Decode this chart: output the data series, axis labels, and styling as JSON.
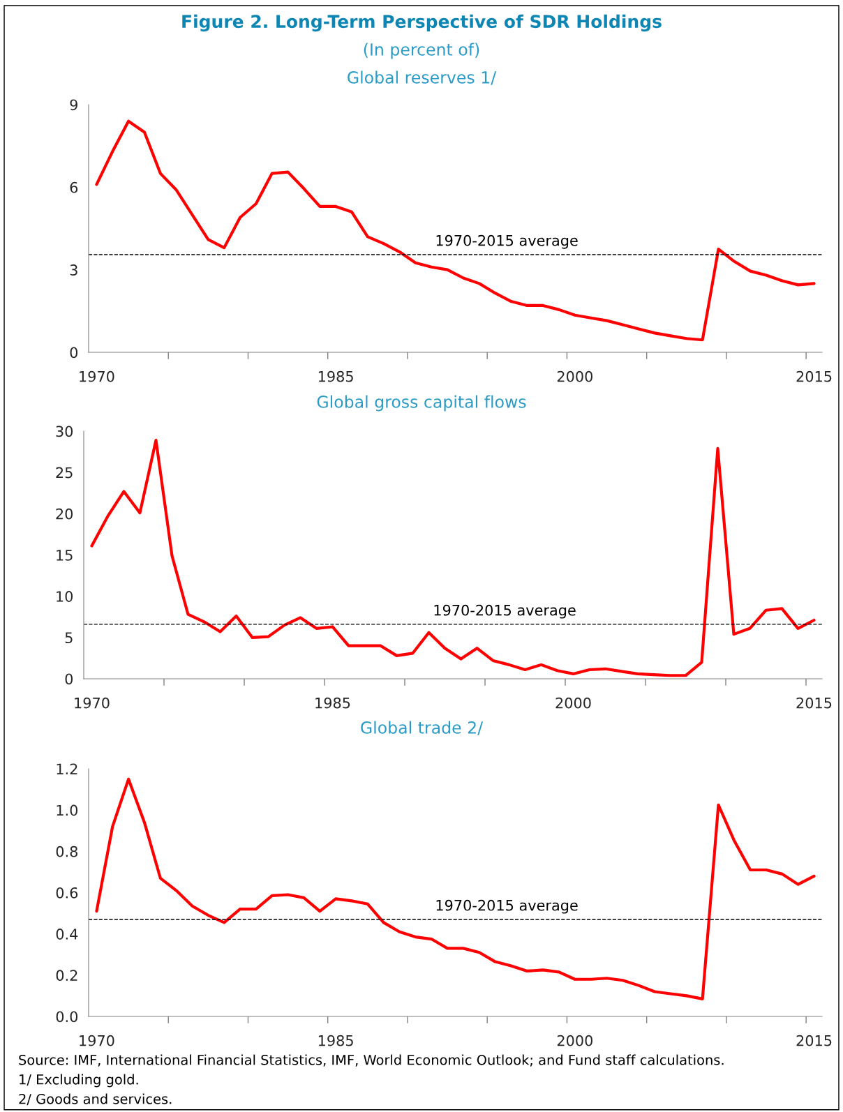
{
  "chart_data": [
    {
      "type": "line",
      "title": "Figure 2. Long-Term Perspective of SDR Holdings",
      "subtitle": "(In percent of)",
      "xlabel": "Global reserves 1/",
      "x": [
        1970,
        1971,
        1972,
        1973,
        1974,
        1975,
        1976,
        1977,
        1978,
        1979,
        1980,
        1981,
        1982,
        1983,
        1984,
        1985,
        1986,
        1987,
        1988,
        1989,
        1990,
        1991,
        1992,
        1993,
        1994,
        1995,
        1996,
        1997,
        1998,
        1999,
        2000,
        2001,
        2002,
        2003,
        2004,
        2005,
        2006,
        2007,
        2008,
        2009,
        2010,
        2011,
        2012,
        2013,
        2014,
        2015
      ],
      "series": [
        {
          "color": "#ff0000",
          "values": [
            6.1,
            7.3,
            8.4,
            8.0,
            6.5,
            5.9,
            5.0,
            4.1,
            3.8,
            4.9,
            5.4,
            6.5,
            6.55,
            5.95,
            5.3,
            5.3,
            5.1,
            4.2,
            3.95,
            3.65,
            3.25,
            3.1,
            3.0,
            2.7,
            2.5,
            2.15,
            1.85,
            1.7,
            1.7,
            1.55,
            1.35,
            1.25,
            1.15,
            1.0,
            0.85,
            0.7,
            0.6,
            0.5,
            0.45,
            3.75,
            3.3,
            2.95,
            2.8,
            2.6,
            2.45,
            2.5
          ]
        }
      ],
      "xlim": [
        1969.5,
        2015.5
      ],
      "xticks": [
        {
          "value": 1970,
          "label": "1970"
        },
        {
          "value": 1974.5,
          "label": null
        },
        {
          "value": 1979.5,
          "label": null
        },
        {
          "value": 1985,
          "label": "1985"
        },
        {
          "value": 1984.5,
          "label": null
        },
        {
          "value": 1989.5,
          "label": null
        },
        {
          "value": 1994.5,
          "label": null
        },
        {
          "value": 2000,
          "label": "2000"
        },
        {
          "value": 1999.5,
          "label": null
        },
        {
          "value": 2004.5,
          "label": null
        },
        {
          "value": 2009.5,
          "label": null
        },
        {
          "value": 2015,
          "label": "2015"
        },
        {
          "value": 2014.5,
          "label": null
        }
      ],
      "ylim": [
        0,
        9
      ],
      "yticks": [
        0,
        3,
        6,
        9
      ],
      "ref_lines": [
        {
          "axis": "y",
          "value": 3.55,
          "label": "1970-2015 average",
          "color": "#000000",
          "line_style": "dashed"
        }
      ],
      "grid": false,
      "legend": false,
      "marker": "none",
      "line_style": "solid"
    },
    {
      "type": "line",
      "xlabel": "Global gross capital flows",
      "x": [
        1970,
        1971,
        1972,
        1973,
        1974,
        1975,
        1976,
        1977,
        1978,
        1979,
        1980,
        1981,
        1982,
        1983,
        1984,
        1985,
        1986,
        1987,
        1988,
        1989,
        1990,
        1991,
        1992,
        1993,
        1994,
        1995,
        1996,
        1997,
        1998,
        1999,
        2000,
        2001,
        2002,
        2003,
        2004,
        2005,
        2006,
        2007,
        2008,
        2009,
        2010,
        2011,
        2012,
        2013,
        2014,
        2015
      ],
      "series": [
        {
          "color": "#ff0000",
          "values": [
            16.1,
            19.7,
            22.7,
            20.1,
            28.9,
            14.9,
            7.8,
            6.9,
            5.7,
            7.6,
            5.0,
            5.1,
            6.5,
            7.4,
            6.1,
            6.3,
            4.0,
            4.0,
            4.0,
            2.8,
            3.1,
            5.6,
            3.7,
            2.4,
            3.7,
            2.2,
            1.7,
            1.1,
            1.7,
            1.0,
            0.6,
            1.1,
            1.2,
            0.9,
            0.6,
            0.5,
            0.4,
            0.4,
            2.0,
            27.9,
            5.4,
            6.1,
            8.3,
            8.5,
            6.1,
            7.1
          ]
        }
      ],
      "xlim": [
        1969.5,
        2015.5
      ],
      "xticks": [
        {
          "value": 1970,
          "label": "1970"
        },
        {
          "value": 1974.5,
          "label": null
        },
        {
          "value": 1979.5,
          "label": null
        },
        {
          "value": 1985,
          "label": "1985"
        },
        {
          "value": 1984.5,
          "label": null
        },
        {
          "value": 1989.5,
          "label": null
        },
        {
          "value": 1994.5,
          "label": null
        },
        {
          "value": 2000,
          "label": "2000"
        },
        {
          "value": 1999.5,
          "label": null
        },
        {
          "value": 2004.5,
          "label": null
        },
        {
          "value": 2009.5,
          "label": null
        },
        {
          "value": 2015,
          "label": "2015"
        },
        {
          "value": 2014.5,
          "label": null
        }
      ],
      "ylim": [
        0,
        30
      ],
      "yticks": [
        0,
        5,
        10,
        15,
        20,
        25,
        30
      ],
      "ref_lines": [
        {
          "axis": "y",
          "value": 6.6,
          "label": "1970-2015 average",
          "color": "#000000",
          "line_style": "dashed"
        }
      ],
      "grid": false,
      "legend": false,
      "marker": "none",
      "line_style": "solid"
    },
    {
      "type": "line",
      "xlabel": "Global trade 2/",
      "x": [
        1970,
        1971,
        1972,
        1973,
        1974,
        1975,
        1976,
        1977,
        1978,
        1979,
        1980,
        1981,
        1982,
        1983,
        1984,
        1985,
        1986,
        1987,
        1988,
        1989,
        1990,
        1991,
        1992,
        1993,
        1994,
        1995,
        1996,
        1997,
        1998,
        1999,
        2000,
        2001,
        2002,
        2003,
        2004,
        2005,
        2006,
        2007,
        2008,
        2009,
        2010,
        2011,
        2012,
        2013,
        2014,
        2015
      ],
      "series": [
        {
          "color": "#ff0000",
          "values": [
            0.51,
            0.92,
            1.15,
            0.94,
            0.67,
            0.61,
            0.535,
            0.49,
            0.455,
            0.52,
            0.52,
            0.585,
            0.59,
            0.575,
            0.51,
            0.57,
            0.56,
            0.545,
            0.455,
            0.41,
            0.385,
            0.375,
            0.33,
            0.33,
            0.31,
            0.265,
            0.245,
            0.22,
            0.225,
            0.215,
            0.18,
            0.18,
            0.185,
            0.175,
            0.15,
            0.12,
            0.11,
            0.1,
            0.085,
            1.025,
            0.85,
            0.71,
            0.71,
            0.69,
            0.64,
            0.68
          ]
        }
      ],
      "xlim": [
        1969.5,
        2015.5
      ],
      "xticks": [
        {
          "value": 1970,
          "label": "1970"
        },
        {
          "value": 1974.5,
          "label": null
        },
        {
          "value": 1979.5,
          "label": null
        },
        {
          "value": 1985,
          "label": "1985"
        },
        {
          "value": 1984.5,
          "label": null
        },
        {
          "value": 1989.5,
          "label": null
        },
        {
          "value": 1994.5,
          "label": null
        },
        {
          "value": 2000,
          "label": "2000"
        },
        {
          "value": 1999.5,
          "label": null
        },
        {
          "value": 2004.5,
          "label": null
        },
        {
          "value": 2009.5,
          "label": null
        },
        {
          "value": 2015,
          "label": "2015"
        },
        {
          "value": 2014.5,
          "label": null
        }
      ],
      "ylim": [
        0,
        1.2
      ],
      "yticks": [
        {
          "value": 0,
          "label": "0.0"
        },
        {
          "value": 0.2,
          "label": "0.2"
        },
        {
          "value": 0.4,
          "label": "0.4"
        },
        {
          "value": 0.6,
          "label": "0.6"
        },
        {
          "value": 0.8,
          "label": "0.8"
        },
        {
          "value": 1.0,
          "label": "1.0"
        },
        {
          "value": 1.2,
          "label": "1.2"
        }
      ],
      "ref_lines": [
        {
          "axis": "y",
          "value": 0.47,
          "label": "1970-2015 average",
          "color": "#000000",
          "line_style": "dashed"
        }
      ],
      "annotations": [
        "Source: IMF, International Financial Statistics, IMF, World Economic Outlook; and Fund staff calculations.",
        "1/ Excluding gold.",
        "2/ Goods and services."
      ],
      "grid": false,
      "legend": false,
      "marker": "none",
      "line_style": "solid"
    }
  ]
}
